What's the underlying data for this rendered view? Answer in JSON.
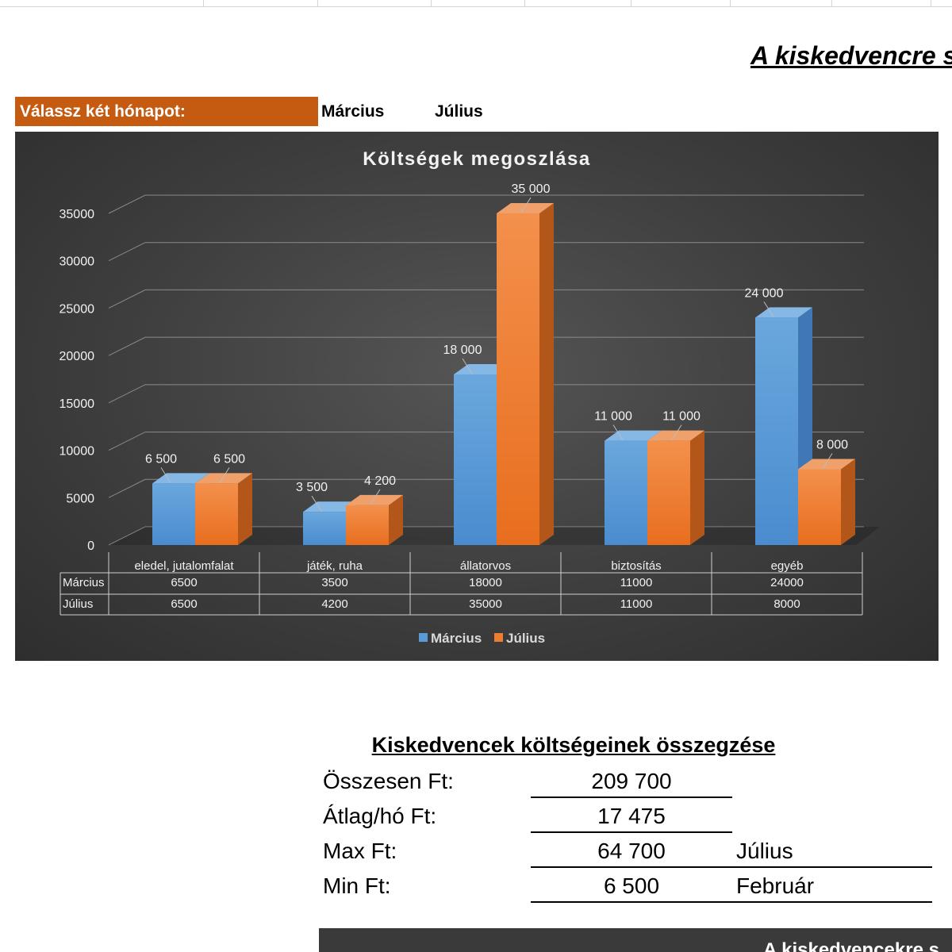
{
  "page": {
    "title": "A kiskedvencre sz",
    "select_label": "Válassz két hónapot:",
    "month1": "Március",
    "month2": "Július"
  },
  "colors": {
    "accent": "#c55a11",
    "series1": "#5b9bd5",
    "series2": "#ed7d31"
  },
  "chart_data": {
    "type": "bar",
    "title": "Költségek megoszlása",
    "categories": [
      "eledel, jutalomfalat",
      "játék, ruha",
      "állatorvos",
      "biztosítás",
      "egyéb"
    ],
    "series": [
      {
        "name": "Március",
        "values": [
          6500,
          3500,
          18000,
          11000,
          24000
        ],
        "labels": [
          "6 500",
          "3 500",
          "18 000",
          "11 000",
          "24 000"
        ],
        "table": [
          "6500",
          "3500",
          "18000",
          "11000",
          "24000"
        ]
      },
      {
        "name": "Július",
        "values": [
          6500,
          4200,
          35000,
          11000,
          8000
        ],
        "labels": [
          "6 500",
          "4 200",
          "35 000",
          "11 000",
          "8 000"
        ],
        "table": [
          "6500",
          "4200",
          "35000",
          "11000",
          "8000"
        ]
      }
    ],
    "ylim": [
      0,
      35000
    ],
    "yticks": [
      0,
      5000,
      10000,
      15000,
      20000,
      25000,
      30000,
      35000
    ],
    "grid": true,
    "legend": "bottom",
    "data_table": true
  },
  "summary": {
    "title": "Kiskedvencek költségeinek összegzése",
    "rows": [
      {
        "label": "Összesen Ft:",
        "value": "209 700",
        "month": ""
      },
      {
        "label": "Átlag/hó Ft:",
        "value": "17 475",
        "month": ""
      },
      {
        "label": "Max Ft:",
        "value": "64 700",
        "month": "Július"
      },
      {
        "label": "Min Ft:",
        "value": "6 500",
        "month": "Február"
      }
    ]
  },
  "footer": {
    "text": "A kiskedvencekre s"
  }
}
